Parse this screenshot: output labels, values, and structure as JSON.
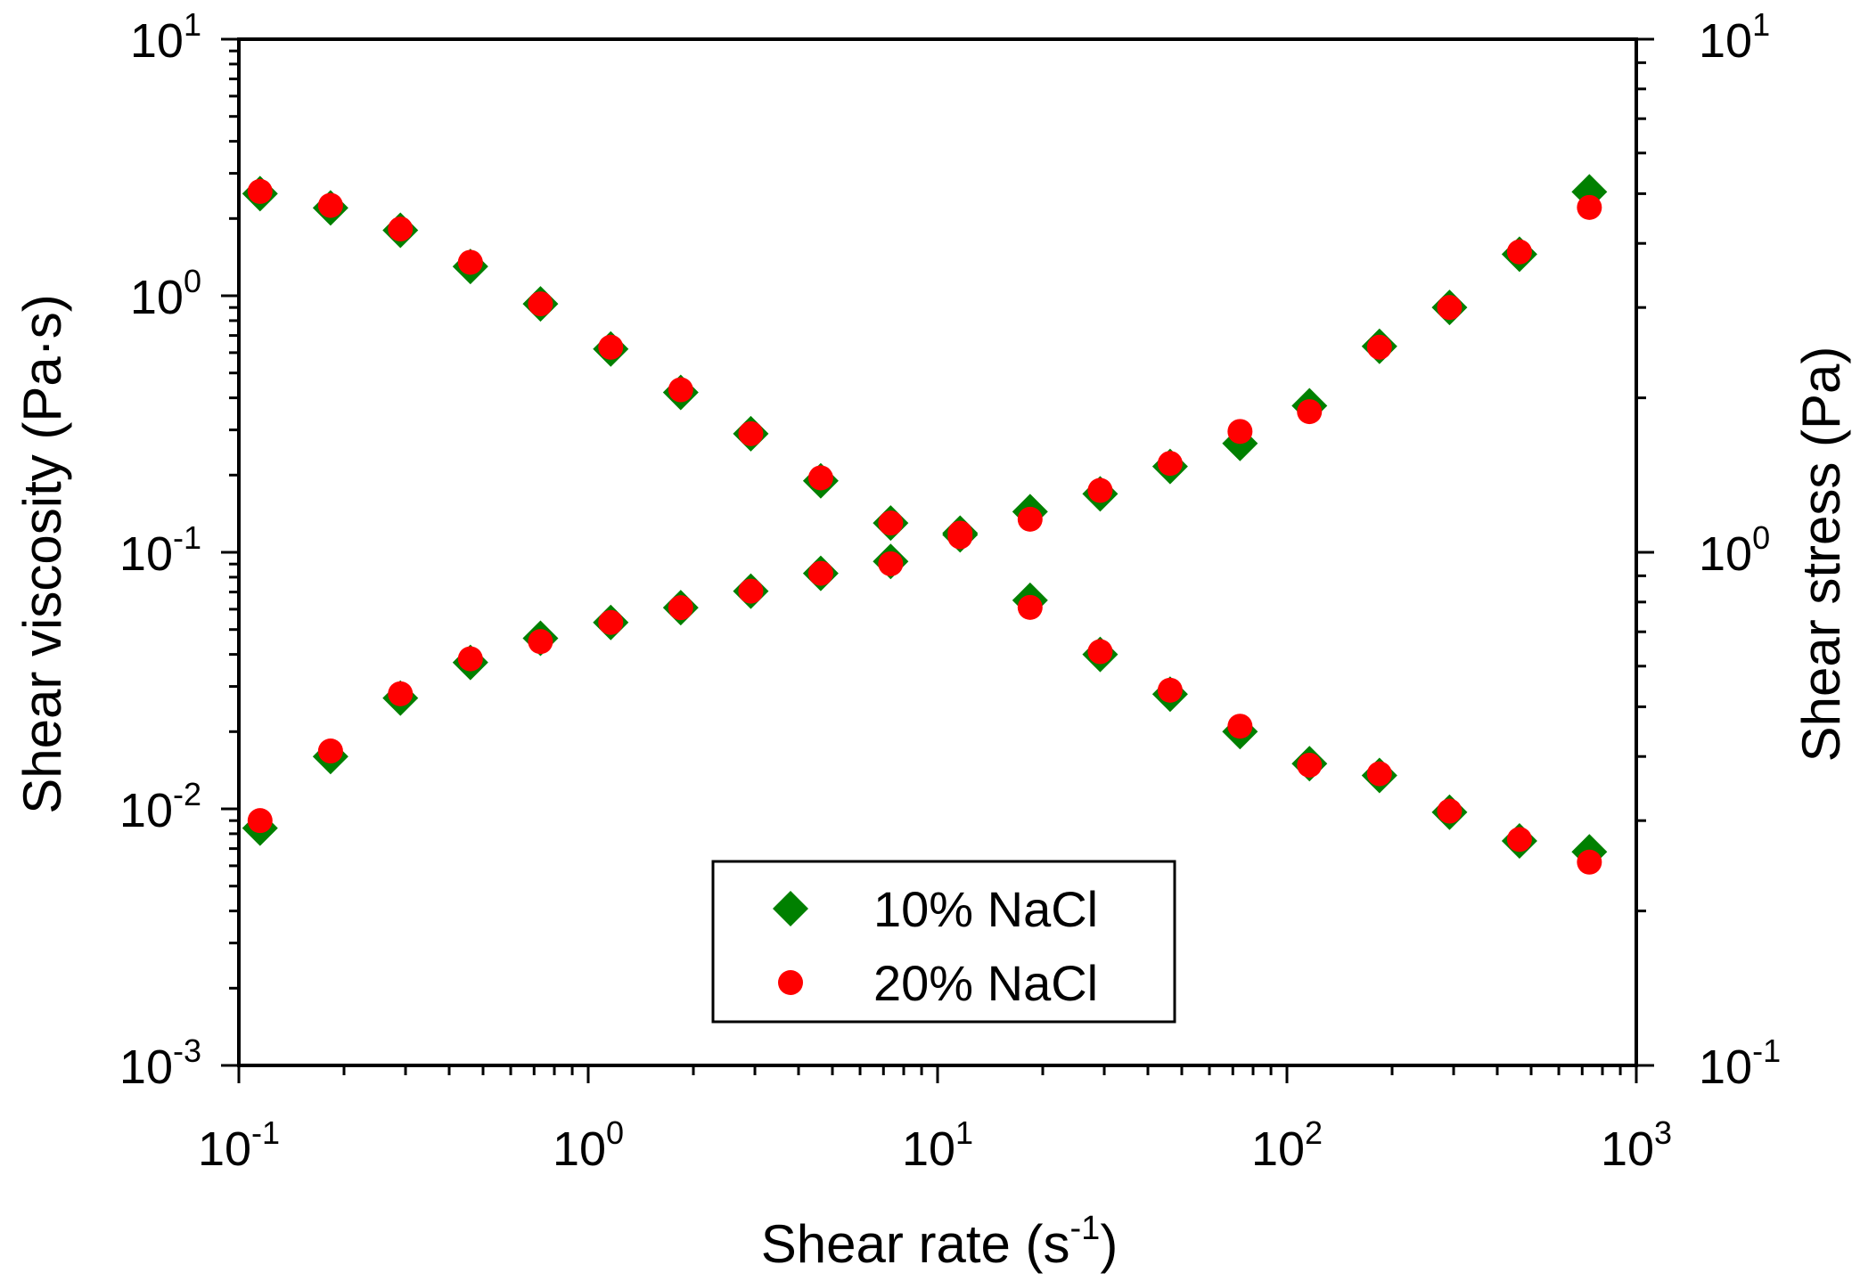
{
  "chart_data": {
    "type": "scatter",
    "xlabel": "Shear rate (s",
    "xlabel_exp": "-1",
    "xlabel_close": ")",
    "ylabel_left": "Shear viscosity (Pa·s)",
    "ylabel_right": "Shear stress (Pa)",
    "x_scale": "log",
    "y_scale": "log",
    "xlim": [
      0.1,
      1000
    ],
    "ylim_left": [
      0.001,
      10
    ],
    "ylim_right": [
      0.1,
      10
    ],
    "grid": false,
    "legend_position": "bottom-center",
    "x_ticks": [
      {
        "base": "10",
        "exp": "-1"
      },
      {
        "base": "10",
        "exp": "0"
      },
      {
        "base": "10",
        "exp": "1"
      },
      {
        "base": "10",
        "exp": "2"
      },
      {
        "base": "10",
        "exp": "3"
      }
    ],
    "y_left_ticks": [
      {
        "base": "10",
        "exp": "-3"
      },
      {
        "base": "10",
        "exp": "-2"
      },
      {
        "base": "10",
        "exp": "-1"
      },
      {
        "base": "10",
        "exp": "0"
      },
      {
        "base": "10",
        "exp": "1"
      }
    ],
    "y_right_ticks": [
      {
        "base": "10",
        "exp": "-1"
      },
      {
        "base": "10",
        "exp": "0"
      },
      {
        "base": "10",
        "exp": "1"
      }
    ],
    "x": [
      0.115,
      0.183,
      0.29,
      0.46,
      0.73,
      1.16,
      1.84,
      2.92,
      4.63,
      7.34,
      11.6,
      18.4,
      29.2,
      46.3,
      73.4,
      116,
      184,
      292,
      463,
      734
    ],
    "series": [
      {
        "name": "10% NaCl",
        "marker": "diamond",
        "color": "#008000",
        "viscosity": [
          2.5,
          2.2,
          1.8,
          1.3,
          0.93,
          0.62,
          0.42,
          0.29,
          0.19,
          0.13,
          0.117,
          0.065,
          0.04,
          0.028,
          0.02,
          0.015,
          0.0135,
          0.0097,
          0.0075,
          0.0068
        ],
        "stress": [
          0.29,
          0.4,
          0.52,
          0.61,
          0.68,
          0.73,
          0.78,
          0.84,
          0.91,
          0.96,
          1.09,
          1.2,
          1.3,
          1.47,
          1.63,
          1.93,
          2.52,
          3.0,
          3.81,
          5.04
        ]
      },
      {
        "name": "20% NaCl",
        "marker": "circle",
        "color": "#ff0000",
        "viscosity": [
          2.55,
          2.25,
          1.82,
          1.35,
          0.93,
          0.63,
          0.43,
          0.29,
          0.195,
          0.13,
          0.115,
          0.061,
          0.041,
          0.029,
          0.021,
          0.0148,
          0.0137,
          0.0098,
          0.0076,
          0.0062
        ],
        "stress": [
          0.3,
          0.41,
          0.53,
          0.62,
          0.67,
          0.73,
          0.78,
          0.84,
          0.91,
          0.95,
          1.09,
          1.16,
          1.32,
          1.49,
          1.72,
          1.88,
          2.51,
          3.0,
          3.85,
          4.7
        ]
      }
    ]
  }
}
